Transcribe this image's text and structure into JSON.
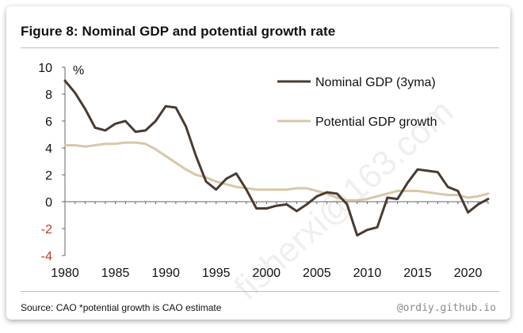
{
  "title": "Figure 8: Nominal GDP and potential growth rate",
  "source": "Source: CAO *potential growth is CAO estimate",
  "brand": "@ordiy.github.io",
  "watermark": "fisherxi@163.com",
  "chart_data": {
    "type": "line",
    "title": "Figure 8: Nominal GDP and potential growth rate",
    "ylabel": "%",
    "xlabel": "",
    "ylim": [
      -4,
      10
    ],
    "xlim": [
      1980,
      2022
    ],
    "yticks": [
      -4,
      -2,
      0,
      2,
      4,
      6,
      8,
      10
    ],
    "xticks": [
      1980,
      1985,
      1990,
      1995,
      2000,
      2005,
      2010,
      2015,
      2020
    ],
    "legend_position": "top-right",
    "grid": false,
    "series": [
      {
        "name": "Nominal GDP (3yma)",
        "color": "#4a3b32",
        "x": [
          1980,
          1981,
          1982,
          1983,
          1984,
          1985,
          1986,
          1987,
          1988,
          1989,
          1990,
          1991,
          1992,
          1993,
          1994,
          1995,
          1996,
          1997,
          1998,
          1999,
          2000,
          2001,
          2002,
          2003,
          2004,
          2005,
          2006,
          2007,
          2008,
          2009,
          2010,
          2011,
          2012,
          2013,
          2014,
          2015,
          2016,
          2017,
          2018,
          2019,
          2020,
          2021,
          2022
        ],
        "values": [
          9.0,
          8.1,
          6.9,
          5.5,
          5.3,
          5.8,
          6.0,
          5.2,
          5.3,
          6.0,
          7.1,
          7.0,
          5.6,
          3.4,
          1.5,
          0.9,
          1.7,
          2.1,
          0.9,
          -0.5,
          -0.5,
          -0.3,
          -0.2,
          -0.7,
          -0.2,
          0.4,
          0.7,
          0.6,
          -0.2,
          -2.5,
          -2.1,
          -1.9,
          0.3,
          0.2,
          1.4,
          2.4,
          2.3,
          2.2,
          1.1,
          0.8,
          -0.8,
          -0.2,
          0.2
        ]
      },
      {
        "name": "Potential GDP growth",
        "color": "#d8c7a8",
        "x": [
          1980,
          1981,
          1982,
          1983,
          1984,
          1985,
          1986,
          1987,
          1988,
          1989,
          1990,
          1991,
          1992,
          1993,
          1994,
          1995,
          1996,
          1997,
          1998,
          1999,
          2000,
          2001,
          2002,
          2003,
          2004,
          2005,
          2006,
          2007,
          2008,
          2009,
          2010,
          2011,
          2012,
          2013,
          2014,
          2015,
          2016,
          2017,
          2018,
          2019,
          2020,
          2021,
          2022
        ],
        "values": [
          4.2,
          4.2,
          4.1,
          4.2,
          4.3,
          4.3,
          4.4,
          4.4,
          4.3,
          3.9,
          3.4,
          2.9,
          2.4,
          2.0,
          1.8,
          1.5,
          1.3,
          1.1,
          1.0,
          0.9,
          0.9,
          0.9,
          0.9,
          1.0,
          1.0,
          0.8,
          0.6,
          0.3,
          0.1,
          0.1,
          0.2,
          0.4,
          0.6,
          0.8,
          0.8,
          0.8,
          0.7,
          0.6,
          0.5,
          0.5,
          0.3,
          0.4,
          0.6
        ]
      }
    ]
  }
}
